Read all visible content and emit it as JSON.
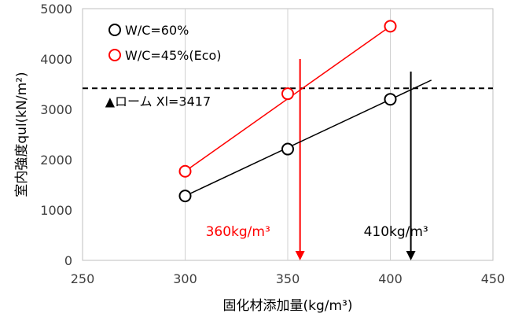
{
  "chart_data": {
    "type": "scatter",
    "xlabel": "固化材添加量(kg/m³)",
    "ylabel": "室内強度qul(kN/m²)",
    "xlim": [
      250,
      450
    ],
    "ylim": [
      0,
      5000
    ],
    "xticks": [
      250,
      300,
      350,
      400,
      450
    ],
    "yticks": [
      0,
      1000,
      2000,
      3000,
      4000,
      5000
    ],
    "grid": "vertical",
    "legend": "top-left",
    "series": [
      {
        "name": "W/C=60%",
        "color": "#000000",
        "marker": "open-circle",
        "points": [
          [
            300,
            1280
          ],
          [
            350,
            2210
          ],
          [
            400,
            3200
          ]
        ],
        "fit_line": [
          [
            300,
            1280
          ],
          [
            420,
            3580
          ]
        ]
      },
      {
        "name": "W/C=45%(Eco)",
        "color": "#ff0000",
        "marker": "open-circle",
        "points": [
          [
            300,
            1770
          ],
          [
            350,
            3310
          ],
          [
            400,
            4650
          ]
        ],
        "fit_line": [
          [
            300,
            1770
          ],
          [
            400,
            4650
          ]
        ]
      }
    ],
    "reference_line": {
      "y": 3417,
      "style": "dashed",
      "color": "#000000",
      "label": "▲ローム Xl=3417"
    },
    "arrows": [
      {
        "x": 356,
        "y_from": 4000,
        "y_to": 0,
        "color": "#ff0000",
        "label": "360kg/m³",
        "label_x": 310,
        "label_y": 560
      },
      {
        "x": 410,
        "y_from": 3750,
        "y_to": 0,
        "color": "#000000",
        "label": "410kg/m³",
        "label_x": 387,
        "label_y": 560
      }
    ]
  }
}
